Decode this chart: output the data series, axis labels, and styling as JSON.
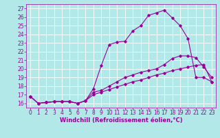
{
  "xlabel": "Windchill (Refroidissement éolien,°C)",
  "xlim": [
    -0.5,
    23.5
  ],
  "ylim": [
    15.5,
    27.5
  ],
  "background_color": "#b2e8e8",
  "grid_color": "#ffffff",
  "line_color": "#990099",
  "lines": [
    {
      "x": [
        0,
        1,
        2,
        3,
        4,
        5,
        6,
        7,
        8,
        9,
        10,
        11,
        12,
        13,
        14,
        15,
        16,
        17,
        18,
        19,
        20,
        21,
        22,
        23
      ],
      "y": [
        16.8,
        16.0,
        16.1,
        16.2,
        16.2,
        16.2,
        16.0,
        16.3,
        17.7,
        20.4,
        22.8,
        23.1,
        23.2,
        24.4,
        25.0,
        26.2,
        26.5,
        26.8,
        25.9,
        25.0,
        23.5,
        19.0,
        19.0,
        18.5
      ]
    },
    {
      "x": [
        0,
        1,
        2,
        3,
        4,
        5,
        6,
        7,
        8,
        9,
        10,
        11,
        12,
        13,
        14,
        15,
        16,
        17,
        18,
        19,
        20,
        21,
        22,
        23
      ],
      "y": [
        16.8,
        16.0,
        16.1,
        16.2,
        16.2,
        16.2,
        16.0,
        16.3,
        17.3,
        17.5,
        18.0,
        18.5,
        19.0,
        19.3,
        19.6,
        19.8,
        20.0,
        20.5,
        21.2,
        21.5,
        21.5,
        21.3,
        20.2,
        19.0
      ]
    },
    {
      "x": [
        0,
        1,
        2,
        3,
        4,
        5,
        6,
        7,
        8,
        9,
        10,
        11,
        12,
        13,
        14,
        15,
        16,
        17,
        18,
        19,
        20,
        21,
        22,
        23
      ],
      "y": [
        16.8,
        16.0,
        16.1,
        16.2,
        16.2,
        16.2,
        16.0,
        16.3,
        17.0,
        17.3,
        17.6,
        17.9,
        18.2,
        18.5,
        18.7,
        19.0,
        19.3,
        19.5,
        19.8,
        20.0,
        20.2,
        20.4,
        20.5,
        18.5
      ]
    }
  ],
  "xticks": [
    0,
    1,
    2,
    3,
    4,
    5,
    6,
    7,
    8,
    9,
    10,
    11,
    12,
    13,
    14,
    15,
    16,
    17,
    18,
    19,
    20,
    21,
    22,
    23
  ],
  "yticks": [
    16,
    17,
    18,
    19,
    20,
    21,
    22,
    23,
    24,
    25,
    26,
    27
  ],
  "label_fontsize": 6,
  "tick_fontsize": 5.5,
  "marker_size": 1.8,
  "line_width": 0.8
}
